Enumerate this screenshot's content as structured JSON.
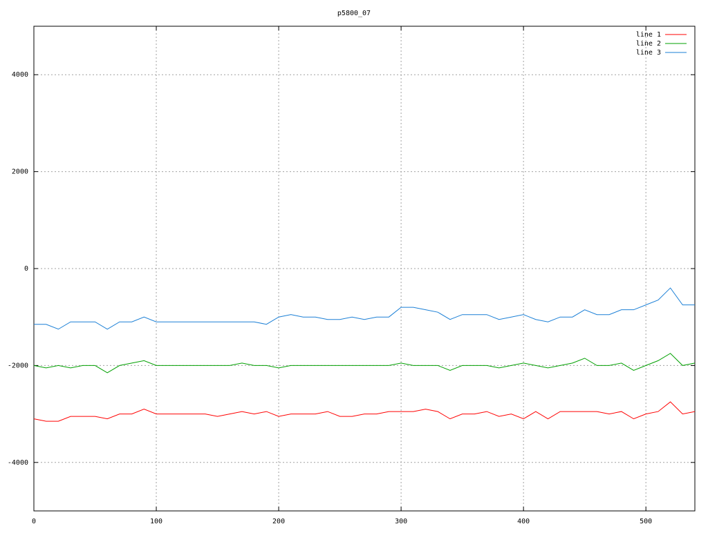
{
  "chart_data": {
    "type": "line",
    "title": "p5800_07",
    "x": [
      0,
      10,
      20,
      30,
      40,
      50,
      60,
      70,
      80,
      90,
      100,
      110,
      120,
      130,
      140,
      150,
      160,
      170,
      180,
      190,
      200,
      210,
      220,
      230,
      240,
      250,
      260,
      270,
      280,
      290,
      300,
      310,
      320,
      330,
      340,
      350,
      360,
      370,
      380,
      390,
      400,
      410,
      420,
      430,
      440,
      450,
      460,
      470,
      480,
      490,
      500,
      510,
      520,
      530,
      540
    ],
    "xlim": [
      0,
      540
    ],
    "xticks": [
      0,
      100,
      200,
      300,
      400,
      500
    ],
    "ylim": [
      -5000,
      5000
    ],
    "yticks": [
      -4000,
      -2000,
      0,
      2000,
      4000
    ],
    "grid": true,
    "legend": "top-right",
    "series": [
      {
        "name": "line 1",
        "color": "#ff0000",
        "values": [
          -3100,
          -3150,
          -3150,
          -3050,
          -3050,
          -3050,
          -3100,
          -3000,
          -3000,
          -2900,
          -3000,
          -3000,
          -3000,
          -3000,
          -3000,
          -3050,
          -3000,
          -2950,
          -3000,
          -2950,
          -3050,
          -3000,
          -3000,
          -3000,
          -2950,
          -3050,
          -3050,
          -3000,
          -3000,
          -2950,
          -2950,
          -2950,
          -2900,
          -2950,
          -3100,
          -3000,
          -3000,
          -2950,
          -3050,
          -3000,
          -3100,
          -2950,
          -3100,
          -2950,
          -2950,
          -2950,
          -2950,
          -3000,
          -2950,
          -3100,
          -3000,
          -2950,
          -2750,
          -3000,
          -2950
        ]
      },
      {
        "name": "line 2",
        "color": "#00a000",
        "values": [
          -2000,
          -2050,
          -2000,
          -2050,
          -2000,
          -2000,
          -2150,
          -2000,
          -1950,
          -1900,
          -2000,
          -2000,
          -2000,
          -2000,
          -2000,
          -2000,
          -2000,
          -1950,
          -2000,
          -2000,
          -2050,
          -2000,
          -2000,
          -2000,
          -2000,
          -2000,
          -2000,
          -2000,
          -2000,
          -2000,
          -1950,
          -2000,
          -2000,
          -2000,
          -2100,
          -2000,
          -2000,
          -2000,
          -2050,
          -2000,
          -1950,
          -2000,
          -2050,
          -2000,
          -1950,
          -1850,
          -2000,
          -2000,
          -1950,
          -2100,
          -2000,
          -1900,
          -1750,
          -2000,
          -1950
        ]
      },
      {
        "name": "line 3",
        "color": "#1a7fd6",
        "values": [
          -1150,
          -1150,
          -1250,
          -1100,
          -1100,
          -1100,
          -1250,
          -1100,
          -1100,
          -1000,
          -1100,
          -1100,
          -1100,
          -1100,
          -1100,
          -1100,
          -1100,
          -1100,
          -1100,
          -1150,
          -1000,
          -950,
          -1000,
          -1000,
          -1050,
          -1050,
          -1000,
          -1050,
          -1000,
          -1000,
          -800,
          -800,
          -850,
          -900,
          -1050,
          -950,
          -950,
          -950,
          -1050,
          -1000,
          -950,
          -1050,
          -1100,
          -1000,
          -1000,
          -850,
          -950,
          -950,
          -850,
          -850,
          -750,
          -650,
          -400,
          -750,
          -750
        ]
      }
    ]
  }
}
